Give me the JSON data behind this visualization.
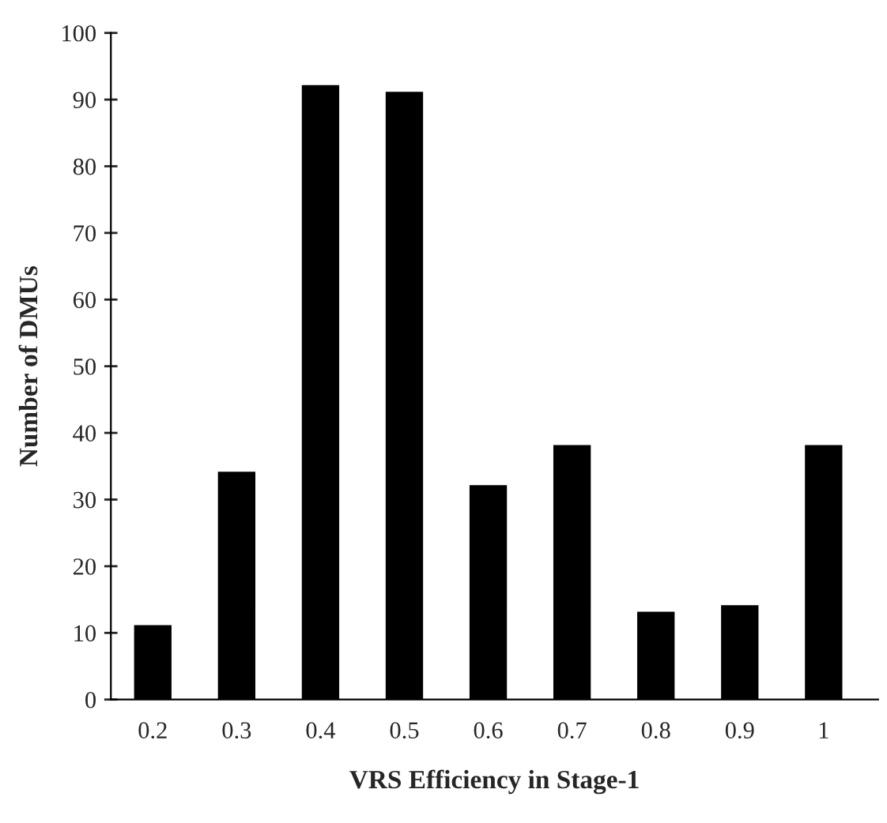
{
  "chart_data": {
    "type": "bar",
    "xlabel": "VRS Efficiency in Stage-1",
    "ylabel": "Number of DMUs",
    "categories": [
      "0.2",
      "0.3",
      "0.4",
      "0.5",
      "0.6",
      "0.7",
      "0.8",
      "0.9",
      "1"
    ],
    "values": [
      11,
      34,
      92,
      91,
      32,
      38,
      13,
      14,
      38
    ],
    "color": "#000000",
    "ylim": [
      0,
      100
    ],
    "yticks": [
      0,
      10,
      20,
      30,
      40,
      50,
      60,
      70,
      80,
      90,
      100
    ],
    "grid": false
  }
}
